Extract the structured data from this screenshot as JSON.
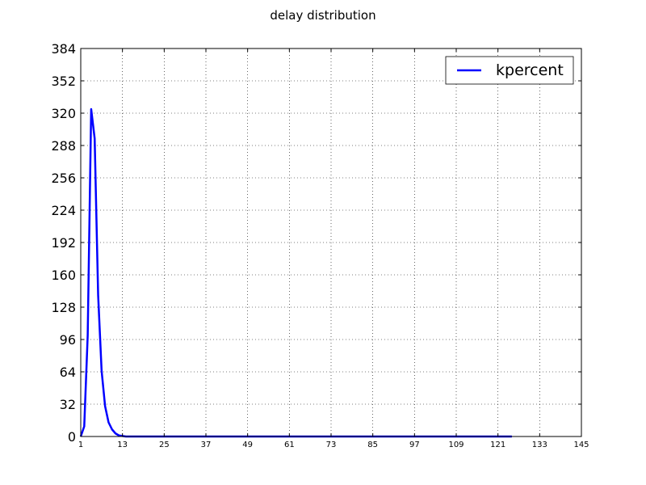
{
  "chart_data": {
    "type": "line",
    "title": "delay distribution",
    "xlabel": "",
    "ylabel": "",
    "xlim": [
      1,
      145
    ],
    "ylim": [
      0,
      384
    ],
    "x_ticks": [
      1,
      13,
      25,
      37,
      49,
      61,
      73,
      85,
      97,
      109,
      121,
      133,
      145
    ],
    "y_ticks": [
      0,
      32,
      64,
      96,
      128,
      160,
      192,
      224,
      256,
      288,
      320,
      352,
      384
    ],
    "grid": true,
    "grid_style": "dotted",
    "legend_position": "top-right",
    "series": [
      {
        "name": "kpercent",
        "color": "#0000ff",
        "x": [
          1,
          2,
          3,
          4,
          5,
          6,
          7,
          8,
          9,
          10,
          11,
          12,
          13,
          14,
          15,
          20,
          30,
          40,
          50,
          60,
          70,
          80,
          90,
          100,
          110,
          120,
          125
        ],
        "y": [
          0,
          10,
          100,
          324,
          295,
          140,
          65,
          30,
          14,
          7,
          3,
          1,
          0.5,
          0,
          0,
          0,
          0,
          0,
          0,
          0,
          0,
          0,
          0,
          0,
          0,
          0,
          0
        ]
      }
    ]
  }
}
